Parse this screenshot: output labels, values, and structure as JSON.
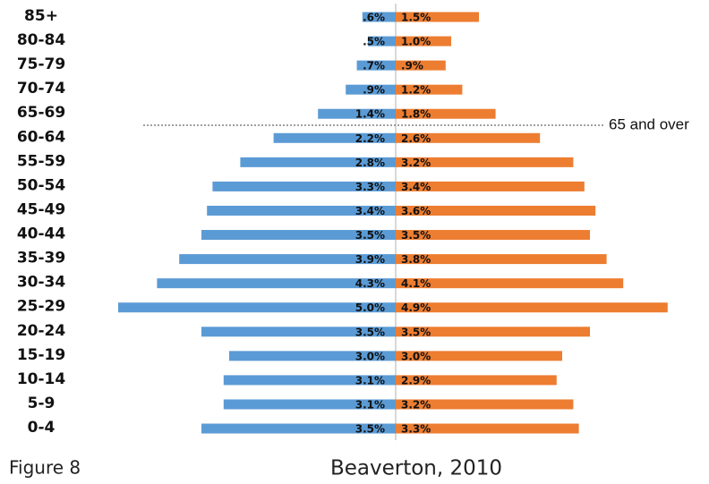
{
  "chart_data": {
    "type": "pyramid",
    "title": "Beaverton, 2010",
    "figure_label": "Figure 8",
    "annotation": "65 and over",
    "categories": [
      "85+",
      "80-84",
      "75-79",
      "70-74",
      "65-69",
      "60-64",
      "55-59",
      "50-54",
      "45-49",
      "40-44",
      "35-39",
      "30-34",
      "25-29",
      "20-24",
      "15-19",
      "10-14",
      "5-9",
      "0-4"
    ],
    "series": [
      {
        "color": "#5b9bd5",
        "side": "left",
        "values": [
          0.6,
          0.5,
          0.7,
          0.9,
          1.4,
          2.2,
          2.8,
          3.3,
          3.4,
          3.5,
          3.9,
          4.3,
          5.0,
          3.5,
          3.0,
          3.1,
          3.1,
          3.5
        ],
        "value_labels": [
          ".6%",
          ".5%",
          ".7%",
          ".9%",
          "1.4%",
          "2.2%",
          "2.8%",
          "3.3%",
          "3.4%",
          "3.5%",
          "3.9%",
          "4.3%",
          "5.0%",
          "3.5%",
          "3.0%",
          "3.1%",
          "3.1%",
          "3.5%"
        ]
      },
      {
        "color": "#ed7d31",
        "side": "right",
        "values": [
          1.5,
          1.0,
          0.9,
          1.2,
          1.8,
          2.6,
          3.2,
          3.4,
          3.6,
          3.5,
          3.8,
          4.1,
          4.9,
          3.5,
          3.0,
          2.9,
          3.2,
          3.3
        ],
        "value_labels": [
          "1.5%",
          "1.0%",
          ".9%",
          "1.2%",
          "1.8%",
          "2.6%",
          "3.2%",
          "3.4%",
          "3.6%",
          "3.5%",
          "3.8%",
          "4.1%",
          "4.9%",
          "3.5%",
          "3.0%",
          "2.9%",
          "3.2%",
          "3.3%"
        ]
      }
    ]
  }
}
